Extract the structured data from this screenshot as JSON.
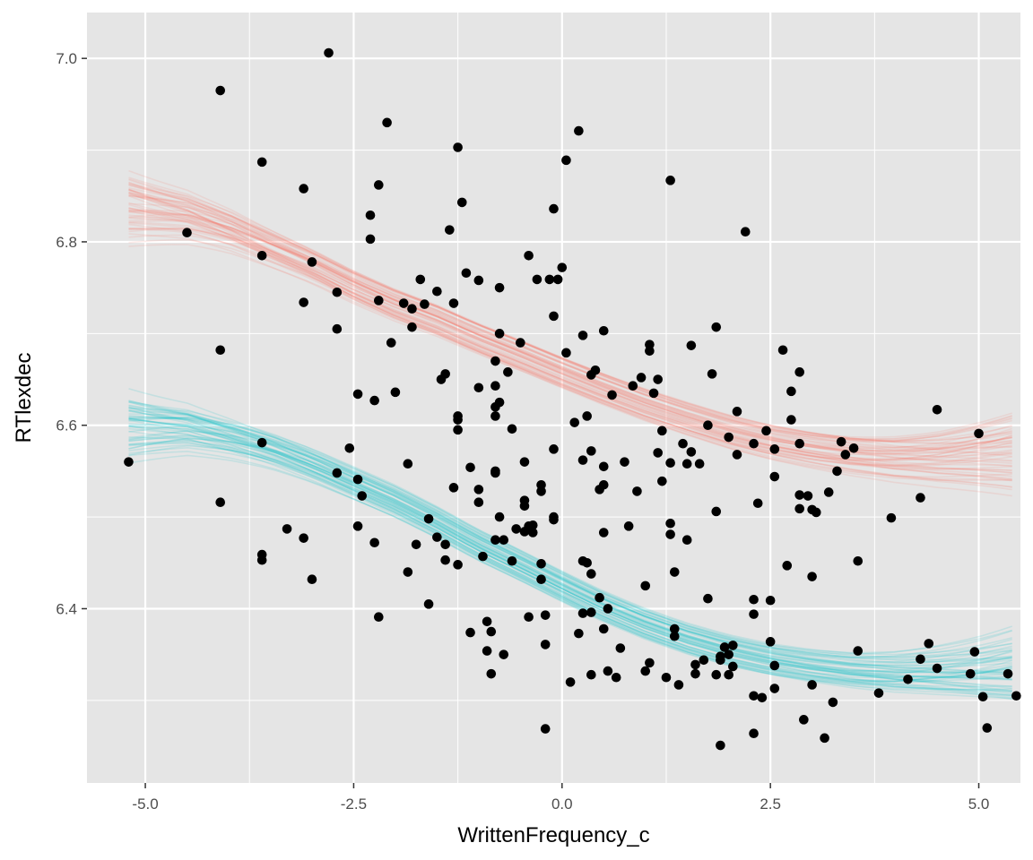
{
  "chart_data": {
    "type": "scatter",
    "xlabel": "WrittenFrequency_c",
    "ylabel": "RTlexdec",
    "xlim": [
      -5.7,
      5.5
    ],
    "ylim": [
      6.21,
      7.05
    ],
    "x_ticks": [
      -5.0,
      -2.5,
      0.0,
      2.5,
      5.0
    ],
    "x_tick_labels": [
      "-5.0",
      "-2.5",
      "0.0",
      "2.5",
      "5.0"
    ],
    "y_ticks": [
      6.4,
      6.6,
      6.8,
      7.0
    ],
    "y_tick_labels": [
      "6.4",
      "6.6",
      "6.8",
      "7.0"
    ],
    "grid": true,
    "legend": "none",
    "colors": {
      "panel": "#e5e5e5",
      "grid": "#ffffff",
      "points": "#000000",
      "curve_upper": "#f8766d",
      "curve_lower": "#00bfc4"
    },
    "points": [
      [
        -5.2,
        6.56
      ],
      [
        -4.5,
        6.81
      ],
      [
        -4.1,
        6.965
      ],
      [
        -4.1,
        6.682
      ],
      [
        -4.1,
        6.516
      ],
      [
        -3.6,
        6.887
      ],
      [
        -3.6,
        6.785
      ],
      [
        -3.6,
        6.581
      ],
      [
        -3.6,
        6.459
      ],
      [
        -3.6,
        6.453
      ],
      [
        -3.3,
        6.487
      ],
      [
        -3.1,
        6.858
      ],
      [
        -3.1,
        6.734
      ],
      [
        -3.1,
        6.477
      ],
      [
        -3.0,
        6.778
      ],
      [
        -3.0,
        6.432
      ],
      [
        -2.8,
        7.006
      ],
      [
        -2.7,
        6.745
      ],
      [
        -2.7,
        6.705
      ],
      [
        -2.7,
        6.548
      ],
      [
        -2.55,
        6.575
      ],
      [
        -2.45,
        6.634
      ],
      [
        -2.45,
        6.541
      ],
      [
        -2.45,
        6.49
      ],
      [
        -2.4,
        6.523
      ],
      [
        -2.3,
        6.829
      ],
      [
        -2.3,
        6.803
      ],
      [
        -2.25,
        6.627
      ],
      [
        -2.25,
        6.472
      ],
      [
        -2.2,
        6.862
      ],
      [
        -2.2,
        6.736
      ],
      [
        -2.2,
        6.391
      ],
      [
        -2.1,
        6.93
      ],
      [
        -2.05,
        6.69
      ],
      [
        -2.0,
        6.636
      ],
      [
        -1.9,
        6.733
      ],
      [
        -1.85,
        6.558
      ],
      [
        -1.85,
        6.44
      ],
      [
        -1.8,
        6.727
      ],
      [
        -1.8,
        6.707
      ],
      [
        -1.75,
        6.47
      ],
      [
        -1.7,
        6.759
      ],
      [
        -1.65,
        6.732
      ],
      [
        -1.6,
        6.498
      ],
      [
        -1.6,
        6.405
      ],
      [
        -1.5,
        6.746
      ],
      [
        -1.5,
        6.478
      ],
      [
        -1.45,
        6.65
      ],
      [
        -1.4,
        6.656
      ],
      [
        -1.4,
        6.47
      ],
      [
        -1.4,
        6.453
      ],
      [
        -1.35,
        6.813
      ],
      [
        -1.3,
        6.733
      ],
      [
        -1.3,
        6.532
      ],
      [
        -1.25,
        6.903
      ],
      [
        -1.25,
        6.61
      ],
      [
        -1.25,
        6.606
      ],
      [
        -1.25,
        6.595
      ],
      [
        -1.25,
        6.448
      ],
      [
        -1.2,
        6.843
      ],
      [
        -1.15,
        6.766
      ],
      [
        -1.1,
        6.554
      ],
      [
        -1.1,
        6.374
      ],
      [
        -1.0,
        6.758
      ],
      [
        -1.0,
        6.641
      ],
      [
        -1.0,
        6.53
      ],
      [
        -1.0,
        6.516
      ],
      [
        -0.95,
        6.457
      ],
      [
        -0.9,
        6.386
      ],
      [
        -0.9,
        6.354
      ],
      [
        -0.85,
        6.329
      ],
      [
        -0.85,
        6.375
      ],
      [
        -0.8,
        6.67
      ],
      [
        -0.8,
        6.643
      ],
      [
        -0.8,
        6.62
      ],
      [
        -0.8,
        6.61
      ],
      [
        -0.8,
        6.55
      ],
      [
        -0.8,
        6.548
      ],
      [
        -0.8,
        6.475
      ],
      [
        -0.75,
        6.75
      ],
      [
        -0.75,
        6.7
      ],
      [
        -0.75,
        6.625
      ],
      [
        -0.75,
        6.5
      ],
      [
        -0.7,
        6.35
      ],
      [
        -0.7,
        6.475
      ],
      [
        -0.65,
        6.658
      ],
      [
        -0.6,
        6.596
      ],
      [
        -0.6,
        6.452
      ],
      [
        -0.55,
        6.487
      ],
      [
        -0.5,
        6.69
      ],
      [
        -0.45,
        6.56
      ],
      [
        -0.45,
        6.518
      ],
      [
        -0.45,
        6.512
      ],
      [
        -0.45,
        6.484
      ],
      [
        -0.4,
        6.785
      ],
      [
        -0.4,
        6.49
      ],
      [
        -0.4,
        6.391
      ],
      [
        -0.35,
        6.491
      ],
      [
        -0.35,
        6.483
      ],
      [
        -0.3,
        6.759
      ],
      [
        -0.25,
        6.535
      ],
      [
        -0.25,
        6.528
      ],
      [
        -0.25,
        6.449
      ],
      [
        -0.25,
        6.432
      ],
      [
        -0.2,
        6.361
      ],
      [
        -0.2,
        6.393
      ],
      [
        -0.2,
        6.269
      ],
      [
        -0.15,
        6.759
      ],
      [
        -0.1,
        6.836
      ],
      [
        -0.1,
        6.719
      ],
      [
        -0.1,
        6.574
      ],
      [
        -0.1,
        6.5
      ],
      [
        -0.1,
        6.497
      ],
      [
        -0.05,
        6.759
      ],
      [
        0.0,
        6.772
      ],
      [
        0.05,
        6.889
      ],
      [
        0.05,
        6.679
      ],
      [
        0.1,
        6.32
      ],
      [
        0.15,
        6.603
      ],
      [
        0.2,
        6.921
      ],
      [
        0.2,
        6.373
      ],
      [
        0.25,
        6.698
      ],
      [
        0.25,
        6.562
      ],
      [
        0.25,
        6.452
      ],
      [
        0.25,
        6.395
      ],
      [
        0.3,
        6.61
      ],
      [
        0.3,
        6.45
      ],
      [
        0.35,
        6.655
      ],
      [
        0.35,
        6.572
      ],
      [
        0.35,
        6.438
      ],
      [
        0.35,
        6.396
      ],
      [
        0.35,
        6.328
      ],
      [
        0.4,
        6.66
      ],
      [
        0.45,
        6.53
      ],
      [
        0.45,
        6.412
      ],
      [
        0.5,
        6.703
      ],
      [
        0.5,
        6.555
      ],
      [
        0.5,
        6.535
      ],
      [
        0.5,
        6.483
      ],
      [
        0.5,
        6.378
      ],
      [
        0.55,
        6.332
      ],
      [
        0.55,
        6.4
      ],
      [
        0.6,
        6.633
      ],
      [
        0.65,
        6.325
      ],
      [
        0.7,
        6.357
      ],
      [
        0.75,
        6.56
      ],
      [
        0.8,
        6.49
      ],
      [
        0.85,
        6.643
      ],
      [
        0.9,
        6.528
      ],
      [
        0.95,
        6.652
      ],
      [
        1.0,
        6.332
      ],
      [
        1.0,
        6.425
      ],
      [
        1.05,
        6.681
      ],
      [
        1.05,
        6.688
      ],
      [
        1.05,
        6.341
      ],
      [
        1.1,
        6.635
      ],
      [
        1.15,
        6.57
      ],
      [
        1.15,
        6.65
      ],
      [
        1.2,
        6.539
      ],
      [
        1.2,
        6.594
      ],
      [
        1.25,
        6.325
      ],
      [
        1.3,
        6.867
      ],
      [
        1.3,
        6.559
      ],
      [
        1.3,
        6.493
      ],
      [
        1.3,
        6.481
      ],
      [
        1.35,
        6.44
      ],
      [
        1.35,
        6.378
      ],
      [
        1.35,
        6.37
      ],
      [
        1.4,
        6.317
      ],
      [
        1.45,
        6.58
      ],
      [
        1.5,
        6.558
      ],
      [
        1.5,
        6.475
      ],
      [
        1.55,
        6.687
      ],
      [
        1.55,
        6.571
      ],
      [
        1.6,
        6.339
      ],
      [
        1.6,
        6.329
      ],
      [
        1.65,
        6.558
      ],
      [
        1.7,
        6.344
      ],
      [
        1.75,
        6.411
      ],
      [
        1.75,
        6.6
      ],
      [
        1.8,
        6.656
      ],
      [
        1.85,
        6.707
      ],
      [
        1.85,
        6.506
      ],
      [
        1.85,
        6.328
      ],
      [
        1.9,
        6.348
      ],
      [
        1.9,
        6.344
      ],
      [
        1.9,
        6.251
      ],
      [
        1.95,
        6.358
      ],
      [
        2.0,
        6.587
      ],
      [
        2.0,
        6.35
      ],
      [
        2.0,
        6.328
      ],
      [
        2.05,
        6.337
      ],
      [
        2.05,
        6.36
      ],
      [
        2.1,
        6.615
      ],
      [
        2.1,
        6.568
      ],
      [
        2.2,
        6.811
      ],
      [
        2.3,
        6.58
      ],
      [
        2.3,
        6.41
      ],
      [
        2.3,
        6.394
      ],
      [
        2.3,
        6.305
      ],
      [
        2.3,
        6.264
      ],
      [
        2.35,
        6.515
      ],
      [
        2.4,
        6.303
      ],
      [
        2.45,
        6.594
      ],
      [
        2.5,
        6.409
      ],
      [
        2.5,
        6.364
      ],
      [
        2.55,
        6.574
      ],
      [
        2.55,
        6.544
      ],
      [
        2.55,
        6.338
      ],
      [
        2.55,
        6.313
      ],
      [
        2.65,
        6.682
      ],
      [
        2.7,
        6.447
      ],
      [
        2.75,
        6.606
      ],
      [
        2.75,
        6.637
      ],
      [
        2.85,
        6.658
      ],
      [
        2.85,
        6.58
      ],
      [
        2.85,
        6.524
      ],
      [
        2.85,
        6.509
      ],
      [
        2.9,
        6.279
      ],
      [
        2.95,
        6.523
      ],
      [
        3.0,
        6.435
      ],
      [
        3.0,
        6.317
      ],
      [
        3.0,
        6.508
      ],
      [
        3.05,
        6.505
      ],
      [
        3.15,
        6.259
      ],
      [
        3.2,
        6.527
      ],
      [
        3.25,
        6.298
      ],
      [
        3.3,
        6.55
      ],
      [
        3.35,
        6.582
      ],
      [
        3.4,
        6.568
      ],
      [
        3.5,
        6.575
      ],
      [
        3.55,
        6.452
      ],
      [
        3.55,
        6.354
      ],
      [
        3.8,
        6.308
      ],
      [
        3.95,
        6.499
      ],
      [
        4.15,
        6.323
      ],
      [
        4.3,
        6.521
      ],
      [
        4.3,
        6.345
      ],
      [
        4.4,
        6.362
      ],
      [
        4.5,
        6.335
      ],
      [
        4.5,
        6.617
      ],
      [
        4.9,
        6.329
      ],
      [
        4.95,
        6.353
      ],
      [
        5.0,
        6.591
      ],
      [
        5.05,
        6.304
      ],
      [
        5.1,
        6.27
      ],
      [
        5.35,
        6.329
      ],
      [
        5.45,
        6.305
      ]
    ],
    "curve_bands": [
      {
        "color_key": "curve_upper",
        "center": [
          [
            -5.2,
            6.84
          ],
          [
            -4.5,
            6.83
          ],
          [
            -4.0,
            6.815
          ],
          [
            -3.5,
            6.795
          ],
          [
            -3.0,
            6.775
          ],
          [
            -2.5,
            6.752
          ],
          [
            -2.0,
            6.732
          ],
          [
            -1.5,
            6.715
          ],
          [
            -1.0,
            6.695
          ],
          [
            -0.5,
            6.677
          ],
          [
            0.0,
            6.658
          ],
          [
            0.5,
            6.64
          ],
          [
            1.0,
            6.623
          ],
          [
            1.5,
            6.608
          ],
          [
            2.0,
            6.594
          ],
          [
            2.5,
            6.583
          ],
          [
            3.0,
            6.575
          ],
          [
            3.5,
            6.569
          ],
          [
            4.0,
            6.566
          ],
          [
            4.5,
            6.566
          ],
          [
            5.0,
            6.569
          ],
          [
            5.4,
            6.572
          ]
        ]
      },
      {
        "color_key": "curve_lower",
        "center": [
          [
            -5.2,
            6.6
          ],
          [
            -4.5,
            6.598
          ],
          [
            -4.0,
            6.588
          ],
          [
            -3.5,
            6.575
          ],
          [
            -3.0,
            6.558
          ],
          [
            -2.5,
            6.538
          ],
          [
            -2.0,
            6.518
          ],
          [
            -1.5,
            6.495
          ],
          [
            -1.0,
            6.47
          ],
          [
            -0.5,
            6.448
          ],
          [
            0.0,
            6.425
          ],
          [
            0.5,
            6.403
          ],
          [
            1.0,
            6.384
          ],
          [
            1.5,
            6.368
          ],
          [
            2.0,
            6.355
          ],
          [
            2.5,
            6.345
          ],
          [
            3.0,
            6.338
          ],
          [
            3.5,
            6.333
          ],
          [
            4.0,
            6.331
          ],
          [
            4.5,
            6.332
          ],
          [
            5.0,
            6.334
          ],
          [
            5.4,
            6.337
          ]
        ]
      }
    ]
  }
}
